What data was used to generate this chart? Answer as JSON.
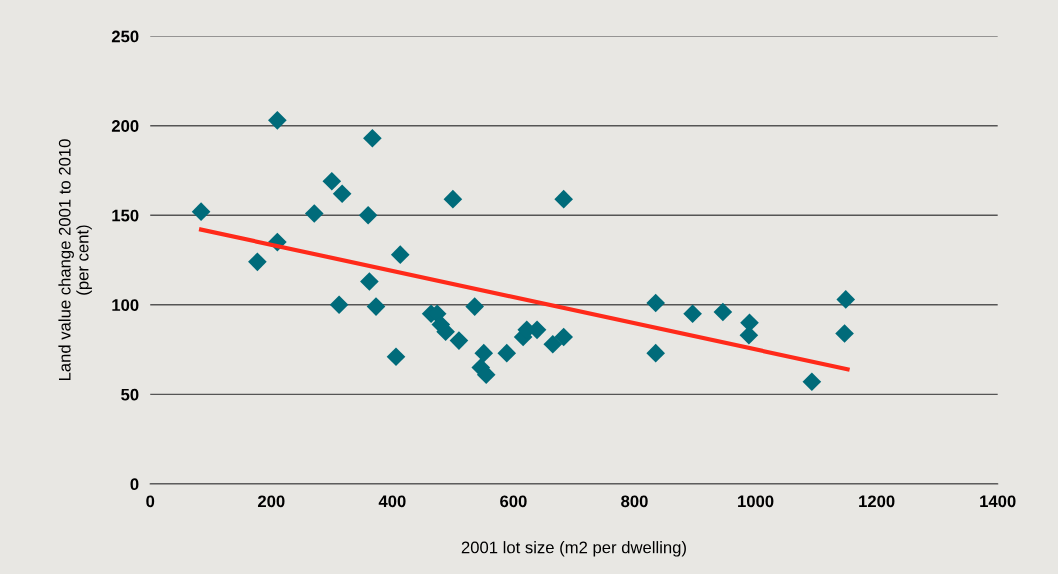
{
  "chart_data": {
    "type": "scatter",
    "xlabel": "2001 lot size (m2 per dwelling)",
    "ylabel": "Land value change 2001 to 2010\n(per cent)",
    "xlim": [
      0,
      1400
    ],
    "xticks": [
      0,
      200,
      400,
      600,
      800,
      1000,
      1200,
      1400
    ],
    "ylim": [
      0,
      250
    ],
    "yticks": [
      0,
      50,
      100,
      150,
      200,
      250
    ],
    "grid": "y",
    "marker": "diamond",
    "series": [
      {
        "color": "#006b7a",
        "x": [
          84,
          177,
          210,
          210,
          271,
          300,
          317,
          312,
          360,
          367,
          362,
          373,
          413,
          406,
          500,
          464,
          474,
          480,
          488,
          510,
          536,
          551,
          546,
          555,
          589,
          616,
          622,
          639,
          665,
          683,
          683,
          835,
          835,
          896,
          946,
          990,
          989,
          1093,
          1149,
          1147
        ],
        "values": [
          152,
          124,
          203,
          135,
          151,
          169,
          162,
          100,
          150,
          193,
          113,
          99,
          128,
          71,
          159,
          95,
          95,
          89,
          85,
          80,
          99,
          73,
          65,
          61,
          73,
          82,
          86,
          86,
          78,
          82,
          159,
          73,
          101,
          95,
          96,
          90,
          83,
          57,
          103,
          84
        ]
      },
      {
        "type": "line",
        "color": "#ff2a1a",
        "marker": "none",
        "x": [
          84,
          1152
        ],
        "values": [
          142,
          64
        ]
      }
    ]
  }
}
